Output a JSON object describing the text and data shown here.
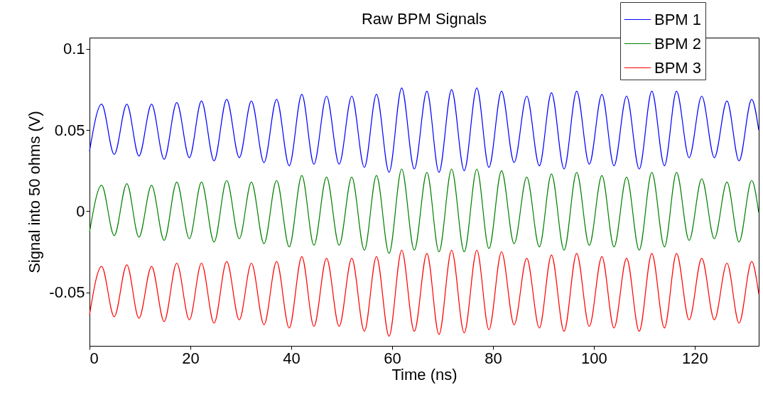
{
  "chart_data": {
    "type": "line",
    "title": "Raw BPM Signals",
    "xlabel": "Time (ns)",
    "ylabel": "Signal into 50 ohms (V)",
    "x": [
      0,
      2.4,
      4.9,
      7.4,
      9.8,
      12.3,
      14.8,
      17.3,
      19.8,
      22.2,
      24.7,
      27.2,
      29.7,
      32.1,
      34.6,
      37.1,
      39.6,
      42.1,
      44.5,
      47.0,
      49.5,
      52.0,
      54.5,
      56.9,
      59.4,
      61.9,
      64.4,
      66.9,
      69.3,
      71.8,
      74.3,
      76.8,
      79.2,
      81.7,
      84.2,
      86.7,
      89.2,
      91.6,
      94.1,
      96.6,
      99.1,
      101.6,
      104.0,
      106.5,
      109.0,
      111.5,
      114.0,
      116.4,
      118.9,
      121.4,
      123.9,
      126.4,
      128.8,
      131.3,
      132.7
    ],
    "series": [
      {
        "name": "BPM 1",
        "color": "#0000ff",
        "values": [
          0.037,
          0.066,
          0.035,
          0.066,
          0.034,
          0.066,
          0.032,
          0.067,
          0.033,
          0.068,
          0.031,
          0.069,
          0.033,
          0.068,
          0.03,
          0.069,
          0.028,
          0.072,
          0.029,
          0.071,
          0.029,
          0.071,
          0.027,
          0.072,
          0.024,
          0.076,
          0.026,
          0.074,
          0.024,
          0.075,
          0.025,
          0.076,
          0.027,
          0.074,
          0.03,
          0.071,
          0.028,
          0.073,
          0.026,
          0.074,
          0.029,
          0.072,
          0.028,
          0.071,
          0.026,
          0.074,
          0.028,
          0.074,
          0.033,
          0.071,
          0.033,
          0.068,
          0.031,
          0.069,
          0.05
        ]
      },
      {
        "name": "BPM 2",
        "color": "#008000",
        "values": [
          -0.013,
          0.016,
          -0.015,
          0.017,
          -0.016,
          0.016,
          -0.018,
          0.018,
          -0.017,
          0.018,
          -0.019,
          0.019,
          -0.017,
          0.018,
          -0.02,
          0.019,
          -0.022,
          0.022,
          -0.021,
          0.021,
          -0.021,
          0.021,
          -0.024,
          0.022,
          -0.026,
          0.026,
          -0.024,
          0.024,
          -0.025,
          0.026,
          -0.025,
          0.026,
          -0.023,
          0.025,
          -0.02,
          0.021,
          -0.022,
          0.023,
          -0.024,
          0.024,
          -0.021,
          0.022,
          -0.022,
          0.021,
          -0.024,
          0.024,
          -0.022,
          0.024,
          -0.018,
          0.02,
          -0.017,
          0.018,
          -0.019,
          0.019,
          -0.001
        ]
      },
      {
        "name": "BPM 3",
        "color": "#ff0000",
        "values": [
          -0.064,
          -0.034,
          -0.065,
          -0.033,
          -0.066,
          -0.034,
          -0.068,
          -0.032,
          -0.067,
          -0.032,
          -0.069,
          -0.031,
          -0.067,
          -0.032,
          -0.07,
          -0.031,
          -0.072,
          -0.028,
          -0.071,
          -0.029,
          -0.071,
          -0.029,
          -0.074,
          -0.028,
          -0.077,
          -0.024,
          -0.074,
          -0.026,
          -0.076,
          -0.024,
          -0.075,
          -0.024,
          -0.073,
          -0.025,
          -0.07,
          -0.029,
          -0.072,
          -0.027,
          -0.074,
          -0.026,
          -0.071,
          -0.028,
          -0.072,
          -0.029,
          -0.074,
          -0.026,
          -0.072,
          -0.026,
          -0.067,
          -0.029,
          -0.067,
          -0.032,
          -0.069,
          -0.031,
          -0.051
        ]
      }
    ],
    "xlim": [
      0,
      132.7
    ],
    "xticks": [
      0,
      20,
      40,
      60,
      80,
      100,
      120
    ],
    "ylim": [
      -0.083,
      0.107
    ],
    "yticks": [
      -0.05,
      0,
      0.05,
      0.1
    ],
    "legend": "top right"
  }
}
